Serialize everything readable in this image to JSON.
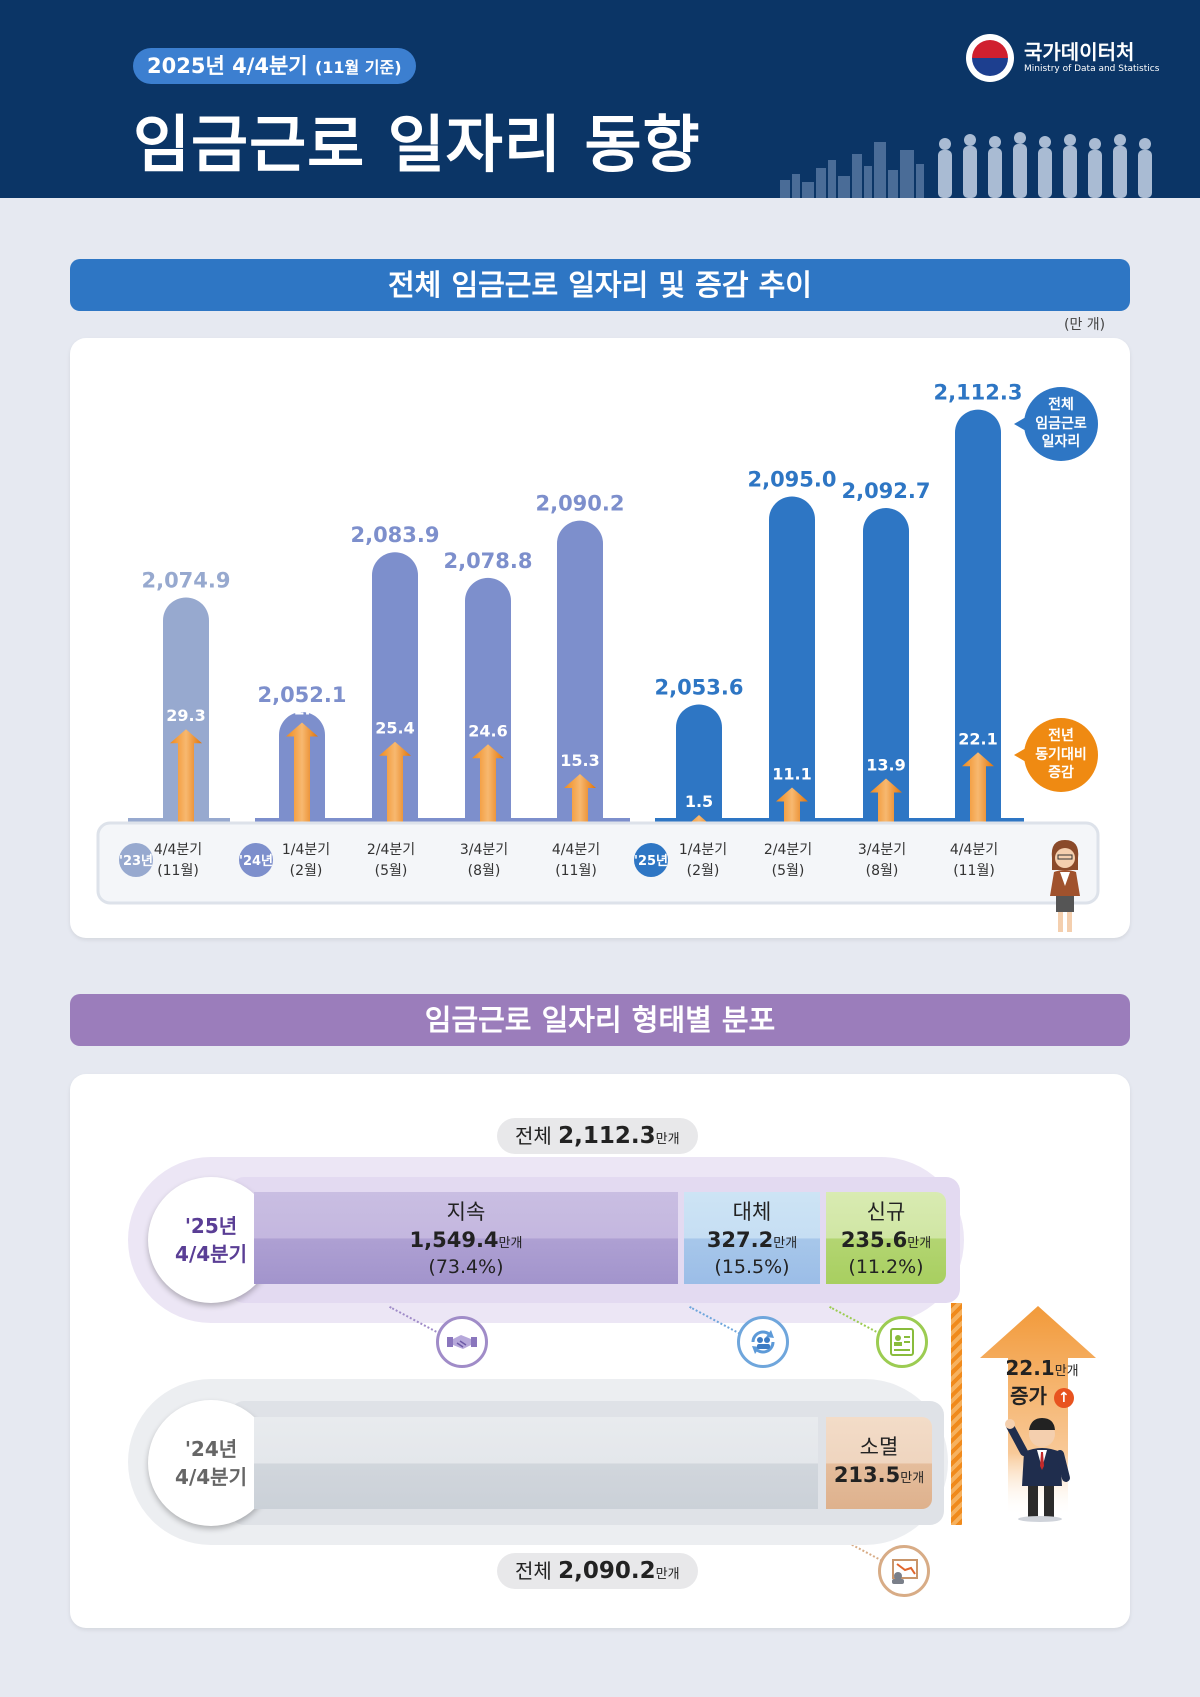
{
  "header": {
    "badge_main": "2025년 4/4분기",
    "badge_paren": "(11월 기준)",
    "title": "임금근로 일자리 동향",
    "logo_name": "국가데이터처",
    "logo_sub": "Ministry of Data and Statistics"
  },
  "section1": {
    "title": "전체 임금근로 일자리 및 증감 추이",
    "unit": "(만 개)",
    "bubble_total": "전체\n임금근로\n일자리",
    "bubble_increase": "전년\n동기대비\n증감"
  },
  "chart_data": {
    "type": "bar",
    "unit": "(만 개)",
    "groups": [
      {
        "year": "'23년",
        "color": "#97a9cf"
      },
      {
        "year": "'24년",
        "color": "#7d8fcc"
      },
      {
        "year": "'25년",
        "color": "#2e76c4"
      }
    ],
    "categories": [
      {
        "label": "4/4분기",
        "month": "(11월)",
        "group": 0
      },
      {
        "label": "1/4분기",
        "month": "(2월)",
        "group": 1
      },
      {
        "label": "2/4분기",
        "month": "(5월)",
        "group": 1
      },
      {
        "label": "3/4분기",
        "month": "(8월)",
        "group": 1
      },
      {
        "label": "4/4분기",
        "month": "(11월)",
        "group": 1
      },
      {
        "label": "1/4분기",
        "month": "(2월)",
        "group": 2
      },
      {
        "label": "2/4분기",
        "month": "(5월)",
        "group": 2
      },
      {
        "label": "3/4분기",
        "month": "(8월)",
        "group": 2
      },
      {
        "label": "4/4분기",
        "month": "(11월)",
        "group": 2
      }
    ],
    "series": [
      {
        "name": "전체 임금근로 일자리",
        "values": [
          2074.9,
          2052.1,
          2083.9,
          2078.8,
          2090.2,
          2053.6,
          2095.0,
          2092.7,
          2112.3
        ],
        "labels": [
          "2,074.9",
          "2,052.1",
          "2,083.9",
          "2,078.8",
          "2,090.2",
          "2,053.6",
          "2,095.0",
          "2,092.7",
          "2,112.3"
        ]
      },
      {
        "name": "전년 동기대비 증감",
        "values": [
          29.3,
          31.4,
          25.4,
          24.6,
          15.3,
          1.5,
          11.1,
          13.9,
          22.1
        ],
        "labels": [
          "29.3",
          "31.4",
          "25.4",
          "24.6",
          "15.3",
          "1.5",
          "11.1",
          "13.9",
          "22.1"
        ]
      }
    ]
  },
  "section2": {
    "title": "임금근로 일자리 형태별 분포",
    "total_2025_label": "전체",
    "total_2025_value": "2,112.3",
    "total_2024_label": "전체",
    "total_2024_value": "2,090.2",
    "unit_small": "만개",
    "year_2025": "'25년\n4/4분기",
    "year_2024": "'24년\n4/4분기",
    "segments": {
      "jisok": {
        "label": "지속",
        "value": "1,549.4",
        "pct": "(73.4%)",
        "share": 73.4
      },
      "daeche": {
        "label": "대체",
        "value": "327.2",
        "pct": "(15.5%)",
        "share": 15.5
      },
      "singyu": {
        "label": "신규",
        "value": "235.6",
        "pct": "(11.2%)",
        "share": 11.2
      },
      "somyeol": {
        "label": "소멸",
        "value": "213.5"
      }
    },
    "increase_value": "22.1",
    "increase_label": "증가",
    "increase_symbol": "↑",
    "icons": [
      "handshake-icon",
      "replace-icon",
      "new-hire-icon",
      "job-loss-icon"
    ],
    "colors": {
      "accent_orange": "#ef8a12",
      "accent_blue": "#2e76c4",
      "accent_purple": "#9b7dbb"
    }
  }
}
